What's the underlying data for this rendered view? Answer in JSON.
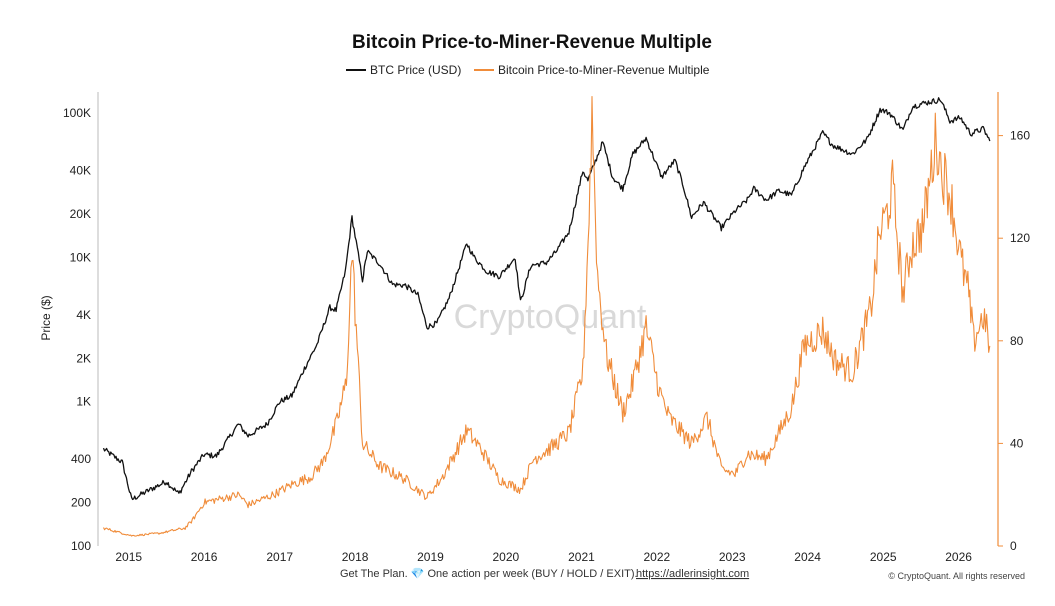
{
  "chart_data": {
    "type": "line",
    "title": "Bitcoin Price-to-Miner-Revenue Multiple",
    "legend_position": "top-center",
    "grid": false,
    "x_ticks": [
      "2015",
      "2016",
      "2017",
      "2018",
      "2019",
      "2020",
      "2021",
      "2022",
      "2023",
      "2024",
      "2025",
      "2026"
    ],
    "y_left": {
      "label": "Price ($)",
      "scale": "log",
      "range": [
        100,
        140000
      ],
      "ticks": [
        {
          "value": 100,
          "label": "100"
        },
        {
          "value": 200,
          "label": "200"
        },
        {
          "value": 400,
          "label": "400"
        },
        {
          "value": 1000,
          "label": "1K"
        },
        {
          "value": 2000,
          "label": "2K"
        },
        {
          "value": 4000,
          "label": "4K"
        },
        {
          "value": 10000,
          "label": "10K"
        },
        {
          "value": 20000,
          "label": "20K"
        },
        {
          "value": 40000,
          "label": "40K"
        },
        {
          "value": 100000,
          "label": "100K"
        }
      ]
    },
    "y_right": {
      "label": "",
      "scale": "linear",
      "range": [
        0,
        177
      ],
      "ticks": [
        {
          "value": 0,
          "label": "0"
        },
        {
          "value": 40,
          "label": "40"
        },
        {
          "value": 80,
          "label": "80"
        },
        {
          "value": 120,
          "label": "120"
        },
        {
          "value": 160,
          "label": "160"
        }
      ]
    },
    "series": [
      {
        "name": "BTC Price (USD)",
        "color": "#111111",
        "axis": "left",
        "x": [
          "2014-09-01",
          "2014-12-01",
          "2015-01-15",
          "2015-04-01",
          "2015-07-01",
          "2015-09-01",
          "2015-11-01",
          "2016-01-01",
          "2016-03-01",
          "2016-06-15",
          "2016-08-01",
          "2016-11-01",
          "2017-01-01",
          "2017-03-01",
          "2017-05-01",
          "2017-07-01",
          "2017-09-01",
          "2017-10-01",
          "2017-11-15",
          "2017-12-17",
          "2018-02-06",
          "2018-03-01",
          "2018-05-01",
          "2018-07-01",
          "2018-09-01",
          "2018-11-01",
          "2018-12-15",
          "2019-02-01",
          "2019-04-01",
          "2019-06-26",
          "2019-08-01",
          "2019-10-01",
          "2019-12-01",
          "2020-02-15",
          "2020-03-12",
          "2020-05-01",
          "2020-07-15",
          "2020-09-01",
          "2020-11-01",
          "2021-01-08",
          "2021-02-01",
          "2021-04-14",
          "2021-06-01",
          "2021-07-20",
          "2021-09-07",
          "2021-11-10",
          "2022-01-24",
          "2022-03-30",
          "2022-05-10",
          "2022-06-18",
          "2022-08-15",
          "2022-11-09",
          "2023-01-15",
          "2023-03-15",
          "2023-04-15",
          "2023-06-15",
          "2023-08-15",
          "2023-10-15",
          "2023-12-15",
          "2024-03-14",
          "2024-05-01",
          "2024-08-05",
          "2024-10-15",
          "2024-12-17",
          "2025-02-01",
          "2025-04-07",
          "2025-05-22",
          "2025-07-14",
          "2025-10-06",
          "2025-11-20",
          "2026-01-10",
          "2026-03-01",
          "2026-05-01",
          "2026-06-01"
        ],
        "values": [
          470,
          380,
          210,
          240,
          280,
          230,
          330,
          430,
          420,
          700,
          580,
          700,
          1000,
          1100,
          1700,
          2500,
          4500,
          4300,
          8000,
          19000,
          7000,
          11000,
          9000,
          6500,
          6400,
          5500,
          3300,
          3500,
          5200,
          12500,
          10000,
          8000,
          7400,
          10000,
          4900,
          8800,
          9200,
          11000,
          15000,
          40000,
          34000,
          63000,
          36000,
          30000,
          52000,
          67000,
          36000,
          47000,
          31000,
          19000,
          24000,
          16000,
          21000,
          25000,
          30000,
          25000,
          29000,
          27000,
          42000,
          73000,
          60000,
          52000,
          66000,
          106000,
          100000,
          76000,
          111000,
          117000,
          124000,
          88000,
          93000,
          72000,
          78000,
          64000
        ]
      },
      {
        "name": "Bitcoin Price-to-Miner-Revenue Multiple",
        "color": "#f08c3a",
        "axis": "right",
        "x": [
          "2014-09-01",
          "2015-01-15",
          "2015-06-01",
          "2015-10-01",
          "2015-11-05",
          "2016-01-01",
          "2016-06-17",
          "2016-08-01",
          "2016-12-01",
          "2017-03-01",
          "2017-06-01",
          "2017-08-01",
          "2017-10-01",
          "2017-11-20",
          "2017-12-17",
          "2018-02-06",
          "2018-05-01",
          "2018-09-01",
          "2018-12-15",
          "2019-03-01",
          "2019-06-26",
          "2019-09-01",
          "2019-12-01",
          "2020-03-12",
          "2020-05-15",
          "2020-08-01",
          "2020-11-01",
          "2021-01-08",
          "2021-02-07",
          "2021-02-21",
          "2021-03-20",
          "2021-05-01",
          "2021-07-20",
          "2021-09-01",
          "2021-11-10",
          "2022-01-15",
          "2022-03-01",
          "2022-06-18",
          "2022-09-01",
          "2022-11-09",
          "2023-01-15",
          "2023-03-15",
          "2023-06-15",
          "2023-10-15",
          "2023-12-15",
          "2024-03-14",
          "2024-05-15",
          "2024-08-05",
          "2024-11-01",
          "2024-12-15",
          "2025-01-20",
          "2025-02-15",
          "2025-04-07",
          "2025-05-15",
          "2025-07-14",
          "2025-09-15",
          "2025-10-06",
          "2025-11-20",
          "2026-01-15",
          "2026-02-15",
          "2026-03-15",
          "2026-05-01",
          "2026-06-01"
        ],
        "values": [
          7,
          4,
          5,
          7,
          10,
          17,
          20,
          16,
          20,
          24,
          27,
          33,
          47,
          64,
          115,
          40,
          31,
          26,
          19,
          27,
          45,
          38,
          26,
          22,
          34,
          38,
          44,
          68,
          130,
          170,
          105,
          75,
          52,
          62,
          85,
          60,
          50,
          40,
          50,
          30,
          28,
          36,
          34,
          54,
          78,
          84,
          72,
          68,
          92,
          122,
          130,
          140,
          98,
          116,
          125,
          160,
          148,
          138,
          110,
          100,
          80,
          90,
          78
        ]
      }
    ]
  },
  "footer": {
    "text": "Get The Plan. 💎 One action per week (BUY / HOLD / EXIT).",
    "link": "https://adlerinsight.com",
    "copyright": "© CryptoQuant. All rights reserved"
  },
  "watermark": "CryptoQuant"
}
